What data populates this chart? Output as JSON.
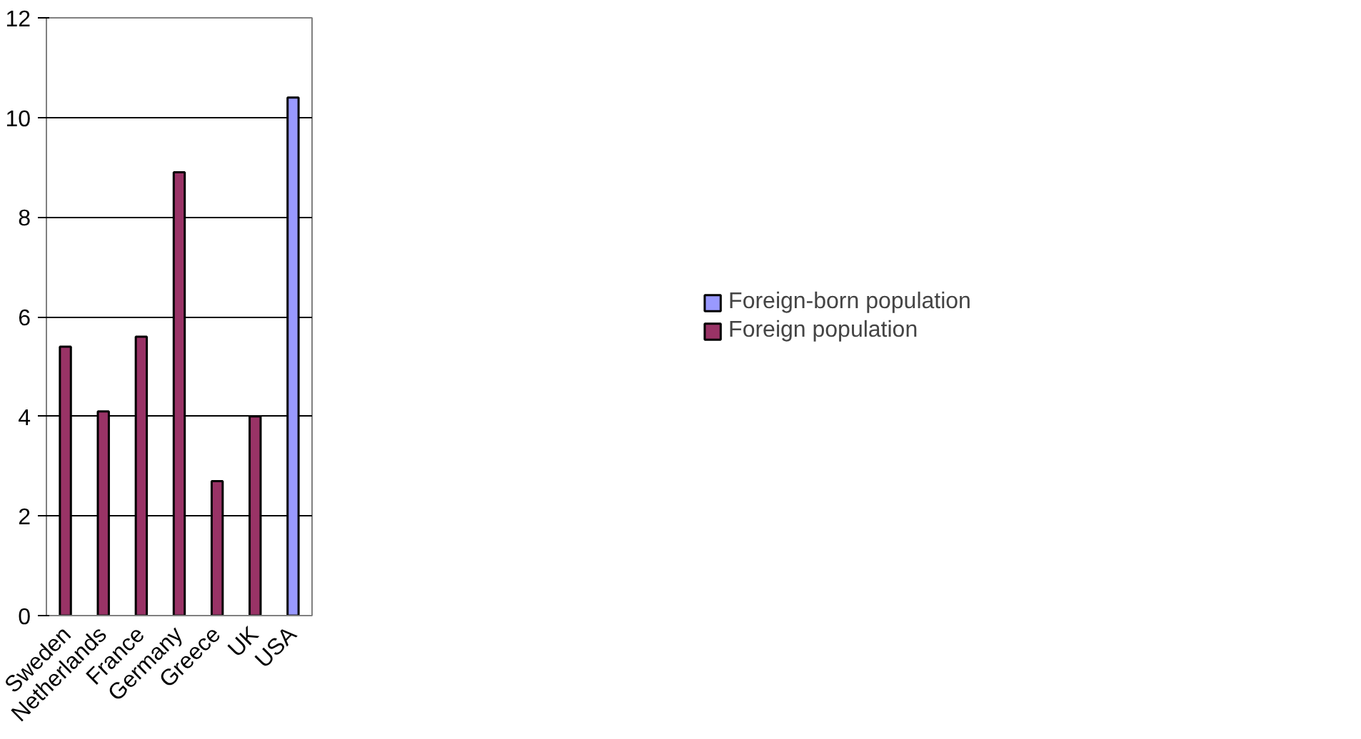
{
  "chart_data": {
    "type": "bar",
    "categories": [
      "Sweden",
      "Netherlands",
      "France",
      "Germany",
      "Greece",
      "UK",
      "USA"
    ],
    "series": [
      {
        "name": "Foreign-born population",
        "color": "#9999ff",
        "values": [
          null,
          null,
          null,
          null,
          null,
          null,
          10.4
        ]
      },
      {
        "name": "Foreign population",
        "color": "#993366",
        "values": [
          5.4,
          4.1,
          5.6,
          8.9,
          2.7,
          4.0,
          null
        ]
      }
    ],
    "ylim": [
      0,
      12
    ],
    "yticks": [
      0,
      2,
      4,
      6,
      8,
      10,
      12
    ],
    "grid": "y",
    "legend": "right"
  }
}
